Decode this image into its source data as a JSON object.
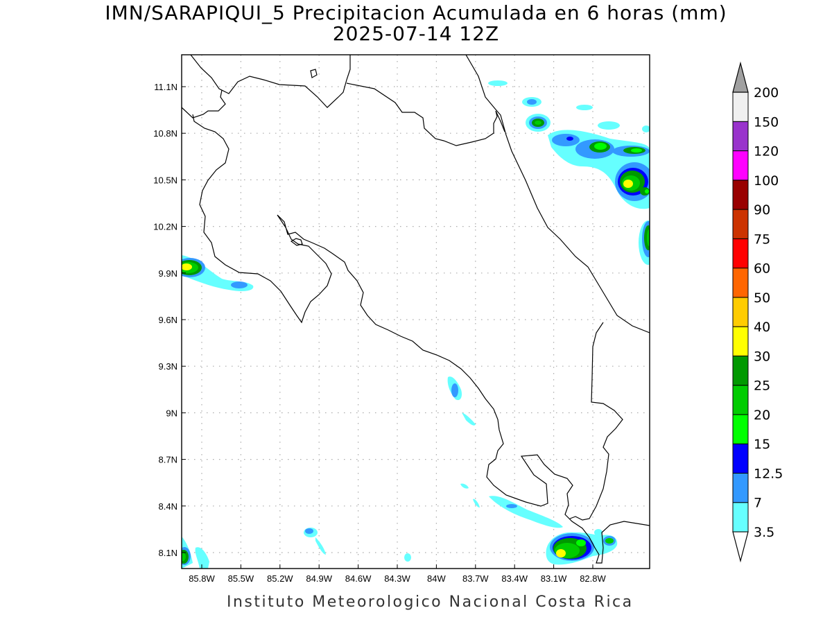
{
  "title": {
    "line1": "IMN/SARAPIQUI_5 Precipitacion Acumulada en 6 horas (mm)",
    "line2": "2025-07-14 12Z"
  },
  "footer": "Instituto Meteorologico Nacional Costa Rica",
  "map": {
    "lon_labels": [
      "85.8W",
      "85.5W",
      "85.2W",
      "84.9W",
      "84.6W",
      "84.3W",
      "84W",
      "83.7W",
      "83.4W",
      "83.1W",
      "82.8W"
    ],
    "lat_labels": [
      "11.1N",
      "10.8N",
      "10.5N",
      "10.2N",
      "9.9N",
      "9.6N",
      "9.3N",
      "9N",
      "8.7N",
      "8.4N",
      "8.1N"
    ],
    "grid": true
  },
  "colorbar": {
    "labels": [
      "3.5",
      "7",
      "12.5",
      "15",
      "20",
      "25",
      "30",
      "40",
      "50",
      "60",
      "75",
      "90",
      "100",
      "120",
      "150",
      "200"
    ],
    "colors": [
      "#66ffff",
      "#3399ff",
      "#0000ff",
      "#00ff00",
      "#00cc00",
      "#009900",
      "#ffff00",
      "#ffcc00",
      "#ff6600",
      "#ff0000",
      "#cc3300",
      "#990000",
      "#ff00ff",
      "#9933cc",
      "#f0f0f0",
      "#a0a0a0"
    ],
    "over_color": "#a0a0a0",
    "under_color": "#ffffff"
  }
}
